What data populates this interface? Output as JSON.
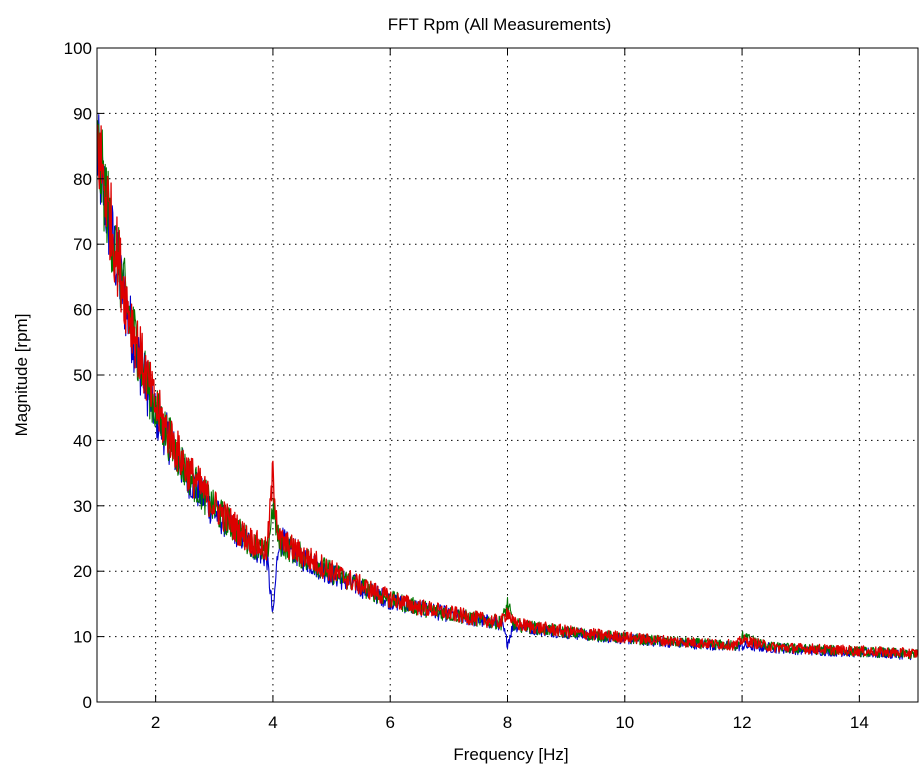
{
  "chart_data": {
    "type": "line",
    "title": "FFT Rpm (All Measurements)",
    "xlabel": "Frequency [Hz]",
    "ylabel": "Magnitude [rpm]",
    "xlim": [
      1,
      15
    ],
    "ylim": [
      0,
      100
    ],
    "x_ticks": [
      2,
      4,
      6,
      8,
      10,
      12,
      14
    ],
    "y_ticks": [
      0,
      10,
      20,
      30,
      40,
      50,
      60,
      70,
      80,
      90,
      100
    ],
    "x_tick_labels": [
      "2",
      "4",
      "6",
      "8",
      "10",
      "12",
      "14"
    ],
    "y_tick_labels": [
      "0",
      "10",
      "20",
      "30",
      "40",
      "50",
      "60",
      "70",
      "80",
      "90",
      "100"
    ],
    "grid": true,
    "grid_style": "dotted",
    "legend": "none",
    "series": [
      {
        "color": "#0000cc",
        "x": [
          1.0,
          1.25,
          1.5,
          1.75,
          2.0,
          2.5,
          3.0,
          3.5,
          3.9,
          4.0,
          4.1,
          4.5,
          5.0,
          5.5,
          6.0,
          6.5,
          7.0,
          7.5,
          7.9,
          8.0,
          8.1,
          8.5,
          9.0,
          9.5,
          10.0,
          10.5,
          11.0,
          11.5,
          11.9,
          12.0,
          12.5,
          13.0,
          13.5,
          14.0,
          14.5,
          15.0
        ],
        "y": [
          84,
          71,
          60,
          51,
          44,
          35,
          29,
          25,
          22,
          13,
          25,
          22,
          19.5,
          17.5,
          15.5,
          14.3,
          13.4,
          12.5,
          12,
          9,
          11.8,
          11.2,
          10.6,
          10.1,
          9.7,
          9.3,
          9,
          8.7,
          8.5,
          8.6,
          8.3,
          8,
          7.8,
          7.6,
          7.4,
          7.2
        ]
      },
      {
        "color": "#007700",
        "x": [
          1.0,
          1.25,
          1.5,
          1.75,
          2.0,
          2.5,
          3.0,
          3.5,
          3.9,
          4.0,
          4.1,
          4.5,
          5.0,
          5.5,
          6.0,
          6.5,
          7.0,
          7.5,
          7.9,
          8.0,
          8.1,
          8.5,
          9.0,
          9.5,
          10.0,
          10.5,
          11.0,
          11.5,
          11.9,
          12.0,
          12.5,
          13.0,
          13.5,
          14.0,
          14.5,
          15.0
        ],
        "y": [
          85,
          72,
          61,
          52,
          44.5,
          35.5,
          29.5,
          25.3,
          22.5,
          30,
          24.5,
          22.3,
          19.8,
          17.7,
          15.7,
          14.4,
          13.5,
          12.6,
          12.1,
          15,
          11.9,
          11.3,
          10.7,
          10.2,
          9.8,
          9.4,
          9.1,
          8.8,
          8.6,
          10,
          8.4,
          8.1,
          7.9,
          7.7,
          7.5,
          7.3
        ]
      },
      {
        "color": "#dd0000",
        "x": [
          1.0,
          1.25,
          1.5,
          1.75,
          2.0,
          2.5,
          3.0,
          3.5,
          3.9,
          4.0,
          4.1,
          4.5,
          5.0,
          5.5,
          6.0,
          6.5,
          7.0,
          7.5,
          7.9,
          8.0,
          8.1,
          8.5,
          9.0,
          9.5,
          10.0,
          10.5,
          11.0,
          11.5,
          11.9,
          12.0,
          12.5,
          13.0,
          13.5,
          14.0,
          14.5,
          15.0
        ],
        "y": [
          86,
          72.5,
          61.5,
          52.5,
          45,
          36,
          30,
          25.5,
          23,
          35,
          24.8,
          22.5,
          20,
          17.8,
          15.8,
          14.5,
          13.6,
          12.7,
          12.2,
          14,
          12,
          11.4,
          10.8,
          10.3,
          9.9,
          9.5,
          9.2,
          8.9,
          8.7,
          9.5,
          8.4,
          8.2,
          8,
          7.8,
          7.6,
          7.4
        ]
      }
    ]
  }
}
